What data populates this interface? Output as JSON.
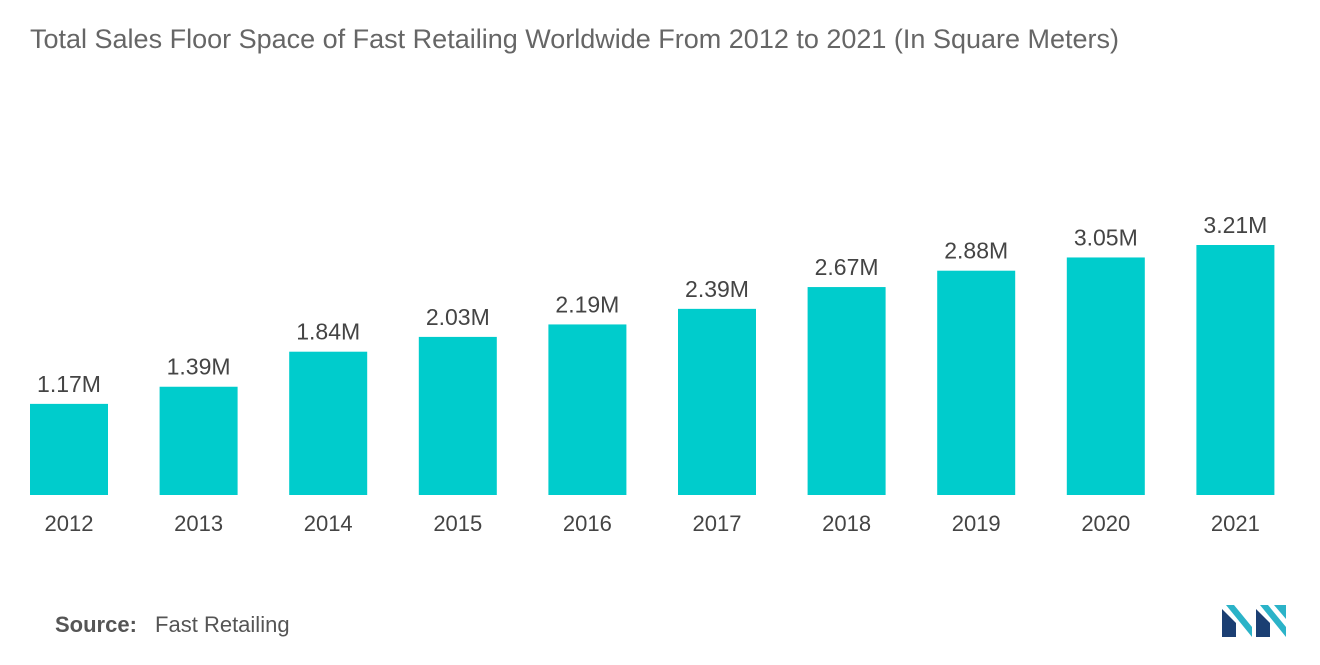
{
  "title": "Total Sales Floor Space of Fast Retailing Worldwide From 2012 to 2021 (In Square Meters)",
  "source": {
    "label": "Source:",
    "value": "Fast Retailing"
  },
  "logo_icon": "mordor-intelligence-logo-icon",
  "colors": {
    "bar": "#00CCCC",
    "label": "#444444",
    "title": "#666666"
  },
  "chart_data": {
    "type": "bar",
    "title": "Total Sales Floor Space of Fast Retailing Worldwide From 2012 to 2021 (In Square Meters)",
    "xlabel": "",
    "ylabel": "",
    "categories": [
      "2012",
      "2013",
      "2014",
      "2015",
      "2016",
      "2017",
      "2018",
      "2019",
      "2020",
      "2021"
    ],
    "values": [
      1.17,
      1.39,
      1.84,
      2.03,
      2.19,
      2.39,
      2.67,
      2.88,
      3.05,
      3.21
    ],
    "value_labels": [
      "1.17M",
      "1.39M",
      "1.84M",
      "2.03M",
      "2.19M",
      "2.39M",
      "2.67M",
      "2.88M",
      "3.05M",
      "3.21M"
    ],
    "unit": "M",
    "ylim": [
      0,
      3.21
    ],
    "grid": false,
    "legend": "none"
  }
}
